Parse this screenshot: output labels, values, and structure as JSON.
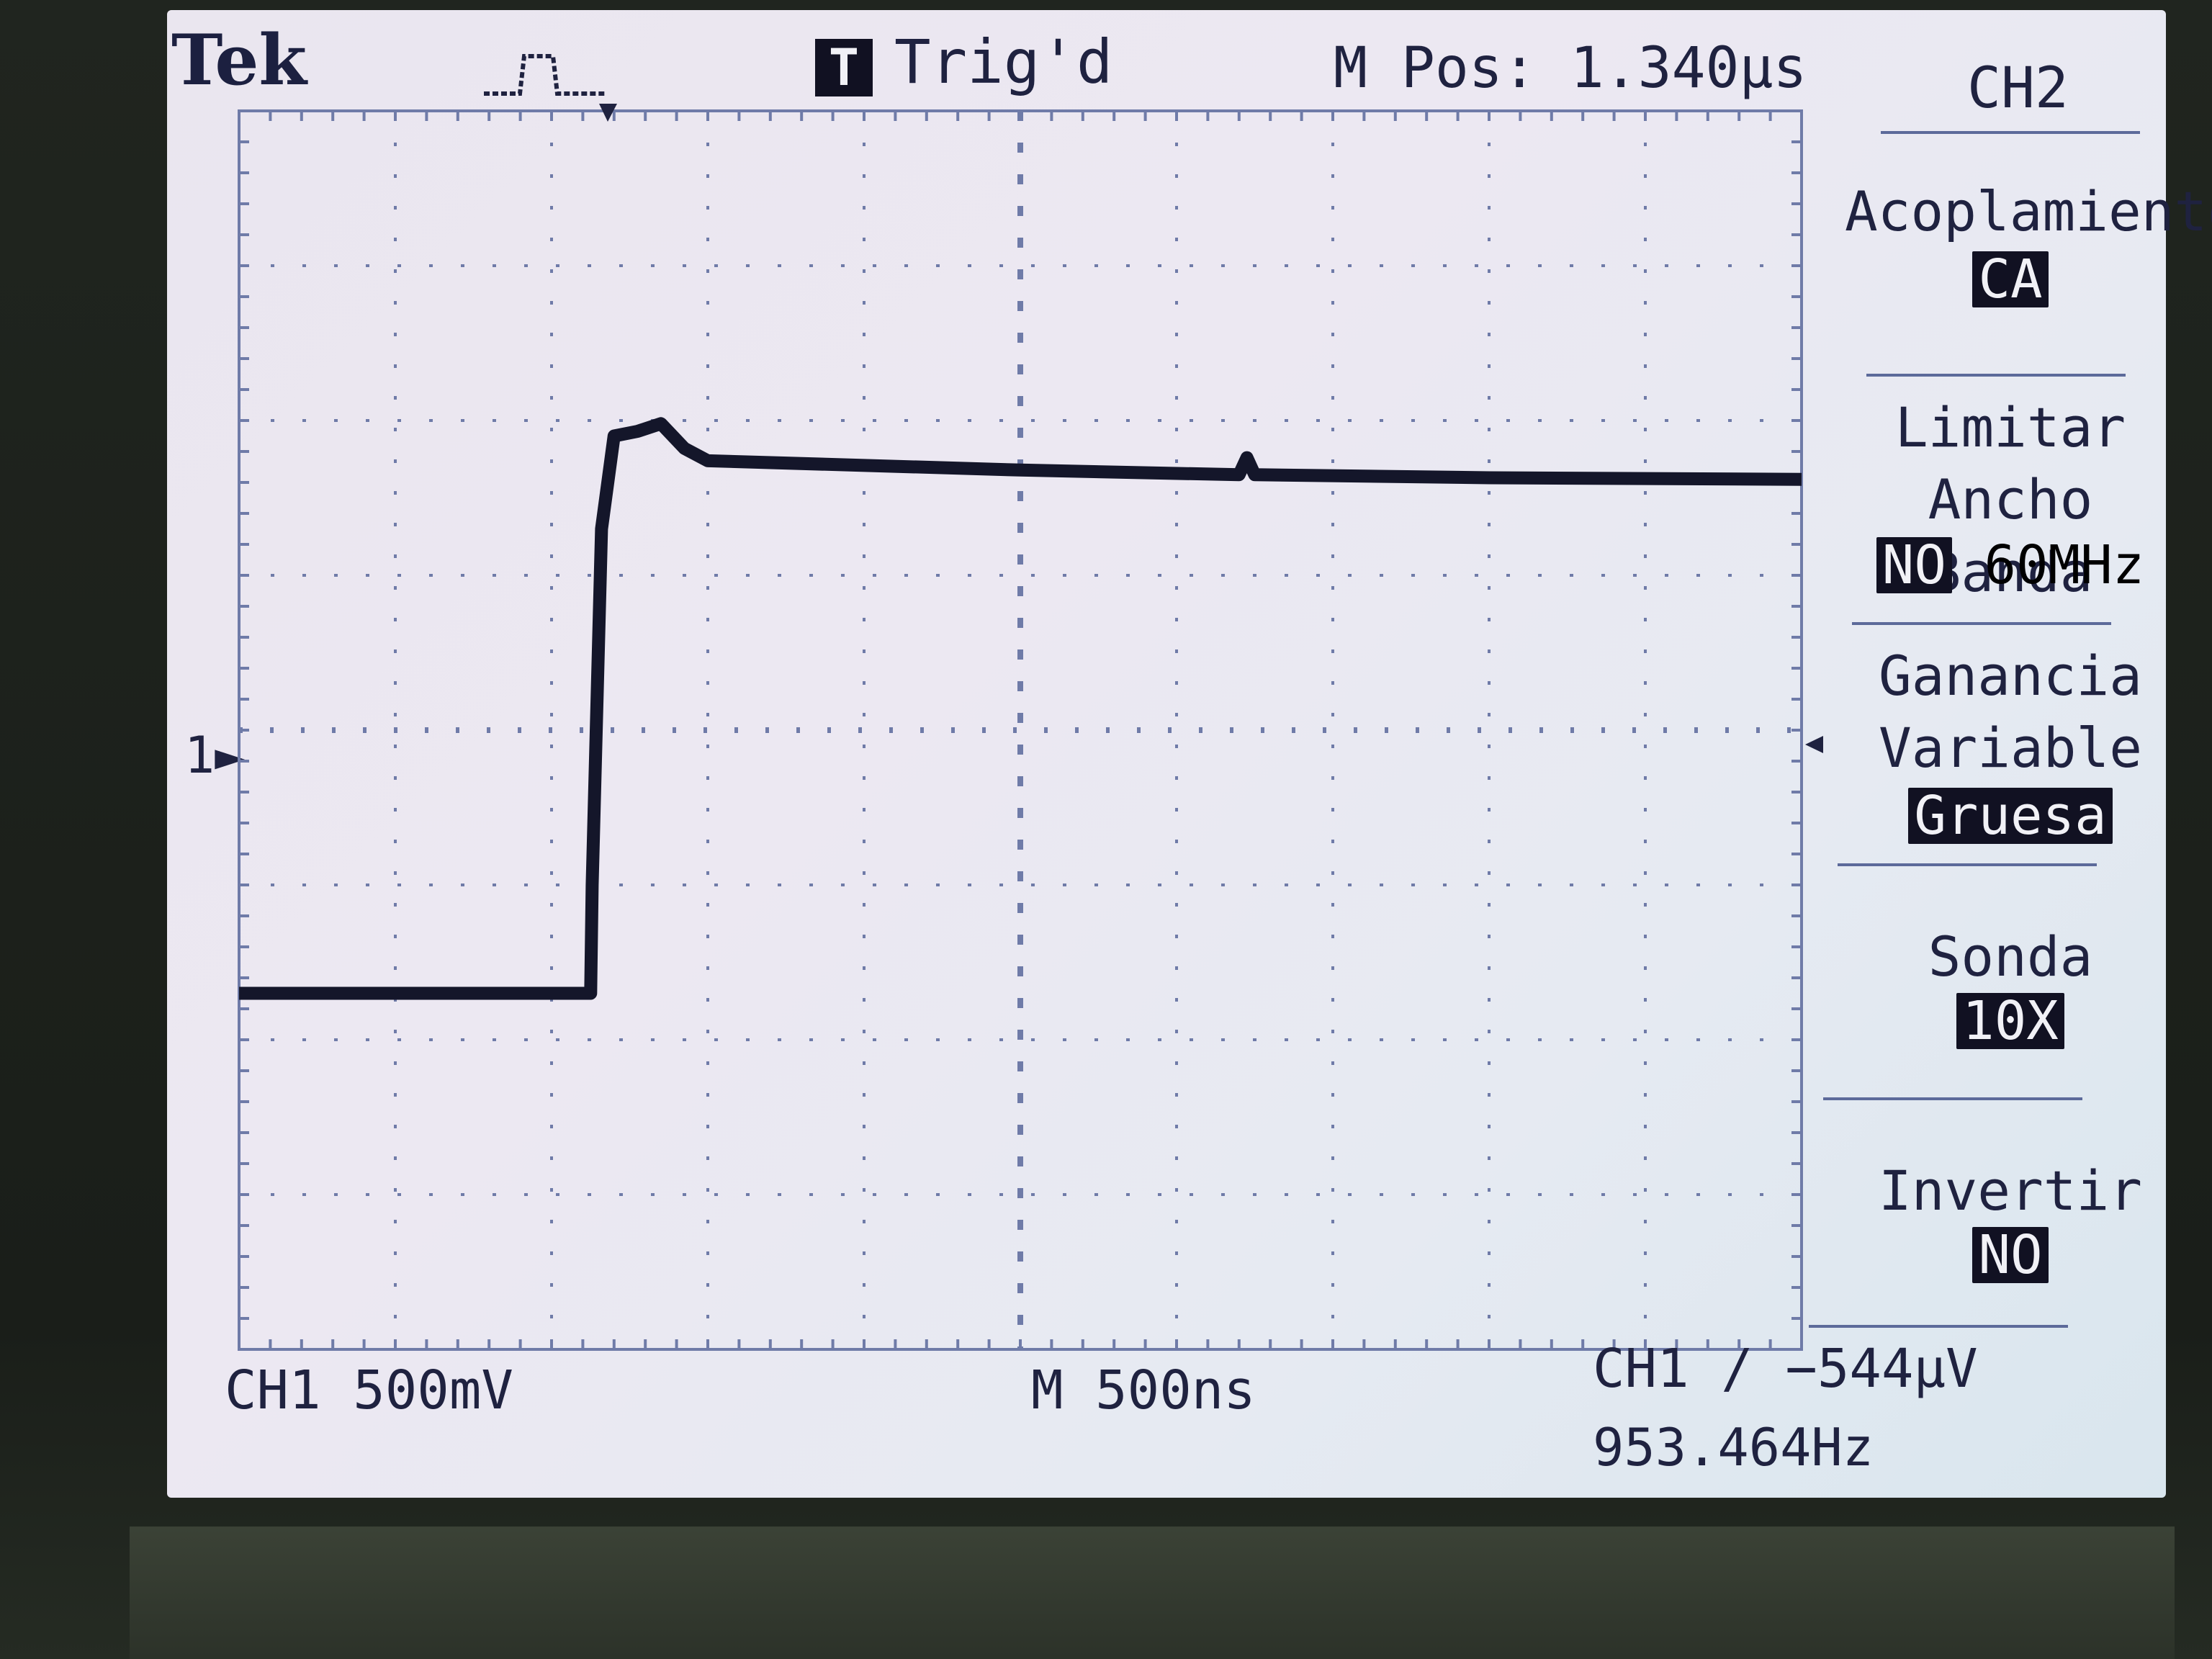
{
  "header": {
    "brand": "Tek",
    "acquisition_icon": "pulse-icon",
    "trigger_badge": "T",
    "trigger_status": "Trig'd",
    "main_position": "M Pos: 1.340µs"
  },
  "channel_marker": "1",
  "side_menu": {
    "title": "CH2",
    "items": [
      {
        "label": "Acoplamiento",
        "value": "CA"
      },
      {
        "label": "Limitar Ancho Banda",
        "value_active": "NO",
        "value_other": "60MHz"
      },
      {
        "label": "Ganancia Variable",
        "value": "Gruesa"
      },
      {
        "label": "Sonda",
        "value": "10X"
      },
      {
        "label": "Invertir",
        "value": "NO"
      }
    ]
  },
  "footer": {
    "ch1_scale": "CH1  500mV",
    "timebase": "M 500ns",
    "trigger": "CH1 ∕ −544µV",
    "frequency": "953.464Hz"
  },
  "colors": {
    "screen": "#ece8f2",
    "ink": "#1f2240",
    "trace": "#14162a",
    "grid": "#6f7ba8"
  },
  "chart_data": {
    "type": "line",
    "xlabel": "",
    "ylabel": "",
    "x_divisions": 10,
    "y_divisions": 8,
    "time_per_div_ns": 500,
    "volts_per_div_mV": 500,
    "xlim_div": [
      0,
      10
    ],
    "ylim_div": [
      -4,
      4
    ],
    "grid": true,
    "series": [
      {
        "name": "CH1",
        "x_div": [
          0,
          2.25,
          2.26,
          2.32,
          2.4,
          2.55,
          2.7,
          2.85,
          3.0,
          5.0,
          6.4,
          6.45,
          6.5,
          8.0,
          10.0
        ],
        "y_div": [
          -1.7,
          -1.7,
          -1.0,
          1.3,
          1.9,
          1.93,
          1.98,
          1.82,
          1.74,
          1.68,
          1.65,
          1.76,
          1.65,
          1.63,
          1.62
        ]
      }
    ]
  }
}
